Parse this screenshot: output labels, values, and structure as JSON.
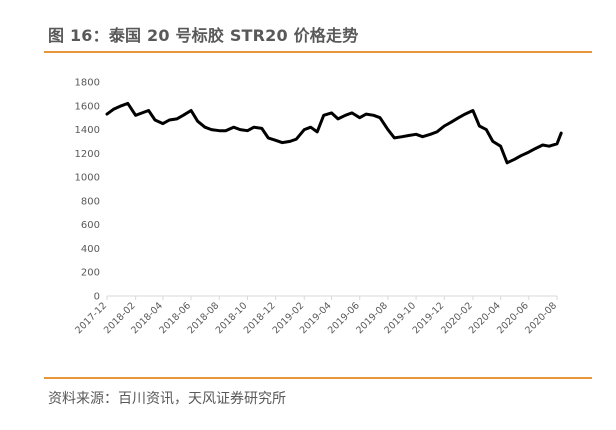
{
  "header": {
    "title": "图 16：泰国 20 号标胶 STR20 价格走势"
  },
  "footer": {
    "source": "资料来源：百川资讯，天风证券研究所"
  },
  "colors": {
    "accent_rule": "#e8963a",
    "line": "#000000",
    "axis": "#d9d9d9",
    "text": "#595959"
  },
  "chart_data": {
    "type": "line",
    "title": "",
    "xlabel": "",
    "ylabel": "",
    "ylim": [
      0,
      1800
    ],
    "y_ticks": [
      "0",
      "200",
      "400",
      "600",
      "800",
      "1000",
      "1200",
      "1400",
      "1600",
      "1800"
    ],
    "x_ticks": [
      "2017-12",
      "2018-02",
      "2018-04",
      "2018-06",
      "2018-08",
      "2018-10",
      "2018-12",
      "2019-02",
      "2019-04",
      "2019-06",
      "2019-08",
      "2019-10",
      "2019-12",
      "2020-02",
      "2020-04",
      "2020-06",
      "2020-08"
    ],
    "grid": false,
    "legend": "none",
    "series": [
      {
        "x": [
          "2017-12-01",
          "2017-12-15",
          "2018-01-01",
          "2018-01-15",
          "2018-02-01",
          "2018-02-15",
          "2018-03-01",
          "2018-03-15",
          "2018-04-01",
          "2018-04-15",
          "2018-05-01",
          "2018-05-15",
          "2018-06-01",
          "2018-06-15",
          "2018-07-01",
          "2018-07-15",
          "2018-08-01",
          "2018-08-15",
          "2018-09-01",
          "2018-09-15",
          "2018-10-01",
          "2018-10-15",
          "2018-11-01",
          "2018-11-15",
          "2018-12-01",
          "2018-12-15",
          "2019-01-01",
          "2019-01-15",
          "2019-02-01",
          "2019-02-15",
          "2019-03-01",
          "2019-03-15",
          "2019-04-01",
          "2019-04-15",
          "2019-05-01",
          "2019-05-15",
          "2019-06-01",
          "2019-06-15",
          "2019-07-01",
          "2019-07-15",
          "2019-08-01",
          "2019-08-15",
          "2019-09-01",
          "2019-09-15",
          "2019-10-01",
          "2019-10-15",
          "2019-11-01",
          "2019-11-15",
          "2019-12-01",
          "2019-12-15",
          "2020-01-01",
          "2020-01-15",
          "2020-02-01",
          "2020-02-15",
          "2020-03-01",
          "2020-03-15",
          "2020-04-01",
          "2020-04-15",
          "2020-05-01",
          "2020-05-15",
          "2020-06-01",
          "2020-06-15",
          "2020-07-01",
          "2020-07-15",
          "2020-08-01",
          "2020-08-10"
        ],
        "values": [
          1530,
          1570,
          1600,
          1620,
          1520,
          1540,
          1560,
          1480,
          1450,
          1480,
          1490,
          1520,
          1560,
          1470,
          1420,
          1400,
          1390,
          1390,
          1420,
          1400,
          1390,
          1420,
          1410,
          1330,
          1310,
          1290,
          1300,
          1320,
          1400,
          1420,
          1380,
          1520,
          1540,
          1490,
          1520,
          1540,
          1500,
          1530,
          1520,
          1500,
          1400,
          1330,
          1340,
          1350,
          1360,
          1340,
          1360,
          1380,
          1430,
          1460,
          1500,
          1530,
          1560,
          1430,
          1400,
          1300,
          1260,
          1120,
          1150,
          1180,
          1210,
          1240,
          1270,
          1260,
          1280,
          1370
        ]
      }
    ]
  }
}
